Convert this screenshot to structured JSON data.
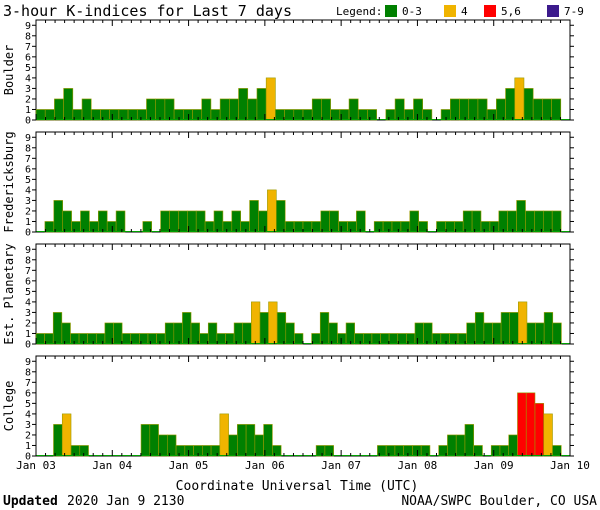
{
  "header": {
    "title": "3-hour K-indices for Last 7 days",
    "legend_label": "Legend:",
    "legend": [
      {
        "label": "0-3",
        "color": "#008000"
      },
      {
        "label": "4",
        "color": "#f0b400"
      },
      {
        "label": "5,6",
        "color": "#ff0000"
      },
      {
        "label": "7-9",
        "color": "#3c1a8c"
      }
    ]
  },
  "footer": {
    "xlabel": "Coordinate Universal Time (UTC)",
    "updated_label": "Updated",
    "updated_value": "2020 Jan  9 2130",
    "credit": "NOAA/SWPC Boulder, CO USA"
  },
  "chart_data": [
    {
      "type": "bar",
      "ylabel": "Boulder",
      "ylim": [
        0,
        9
      ],
      "yticks": [
        "0",
        "1",
        "2",
        "3",
        "4",
        "5",
        "6",
        "7",
        "8",
        "9"
      ],
      "xticks": [
        "Jan 03",
        "Jan 04",
        "Jan 05",
        "Jan 06",
        "Jan 07",
        "Jan 08",
        "Jan 09",
        "Jan 10"
      ],
      "values": [
        1,
        1,
        2,
        3,
        1,
        2,
        1,
        1,
        1,
        1,
        1,
        1,
        2,
        2,
        2,
        1,
        1,
        1,
        2,
        1,
        2,
        2,
        3,
        2,
        3,
        4,
        1,
        1,
        1,
        1,
        2,
        2,
        1,
        1,
        2,
        1,
        1,
        0,
        1,
        2,
        1,
        2,
        1,
        0,
        1,
        2,
        2,
        2,
        2,
        1,
        2,
        3,
        4,
        3,
        2,
        2,
        2,
        0
      ]
    },
    {
      "type": "bar",
      "ylabel": "Fredericksburg",
      "ylim": [
        0,
        9
      ],
      "yticks": [
        "0",
        "1",
        "2",
        "3",
        "4",
        "5",
        "6",
        "7",
        "8",
        "9"
      ],
      "xticks": [
        "Jan 03",
        "Jan 04",
        "Jan 05",
        "Jan 06",
        "Jan 07",
        "Jan 08",
        "Jan 09",
        "Jan 10"
      ],
      "values": [
        0,
        1,
        3,
        2,
        1,
        2,
        1,
        2,
        1,
        2,
        0,
        0,
        1,
        0,
        2,
        2,
        2,
        2,
        2,
        1,
        2,
        1,
        2,
        1,
        3,
        2,
        4,
        3,
        1,
        1,
        1,
        1,
        2,
        2,
        1,
        1,
        2,
        0,
        1,
        1,
        1,
        1,
        2,
        1,
        0,
        1,
        1,
        1,
        2,
        2,
        1,
        1,
        2,
        2,
        3,
        2,
        2,
        2,
        2,
        0
      ]
    },
    {
      "type": "bar",
      "ylabel": "Est. Planetary",
      "ylim": [
        0,
        9
      ],
      "yticks": [
        "0",
        "1",
        "2",
        "3",
        "4",
        "5",
        "6",
        "7",
        "8",
        "9"
      ],
      "xticks": [
        "Jan 03",
        "Jan 04",
        "Jan 05",
        "Jan 06",
        "Jan 07",
        "Jan 08",
        "Jan 09",
        "Jan 10"
      ],
      "values": [
        1,
        1,
        3,
        2,
        1,
        1,
        1,
        1,
        2,
        2,
        1,
        1,
        1,
        1,
        1,
        2,
        2,
        3,
        2,
        1,
        2,
        1,
        1,
        2,
        2,
        4,
        3,
        4,
        3,
        2,
        1,
        0,
        1,
        3,
        2,
        1,
        2,
        1,
        1,
        1,
        1,
        1,
        1,
        1,
        2,
        2,
        1,
        1,
        1,
        1,
        2,
        3,
        2,
        2,
        3,
        3,
        4,
        2,
        2,
        3,
        2,
        0
      ]
    },
    {
      "type": "bar",
      "ylabel": "College",
      "ylim": [
        0,
        9
      ],
      "yticks": [
        "0",
        "1",
        "2",
        "3",
        "4",
        "5",
        "6",
        "7",
        "8",
        "9"
      ],
      "xticks": [
        "Jan 03",
        "Jan 04",
        "Jan 05",
        "Jan 06",
        "Jan 07",
        "Jan 08",
        "Jan 09",
        "Jan 10"
      ],
      "values": [
        0,
        0,
        3,
        4,
        1,
        1,
        0,
        0,
        0,
        0,
        0,
        0,
        3,
        3,
        2,
        2,
        1,
        1,
        1,
        1,
        1,
        4,
        2,
        3,
        3,
        2,
        3,
        1,
        0,
        0,
        0,
        0,
        1,
        1,
        0,
        0,
        0,
        0,
        0,
        1,
        1,
        1,
        1,
        1,
        1,
        0,
        1,
        2,
        2,
        3,
        1,
        0,
        1,
        1,
        2,
        6,
        6,
        5,
        4,
        1,
        0
      ]
    }
  ]
}
